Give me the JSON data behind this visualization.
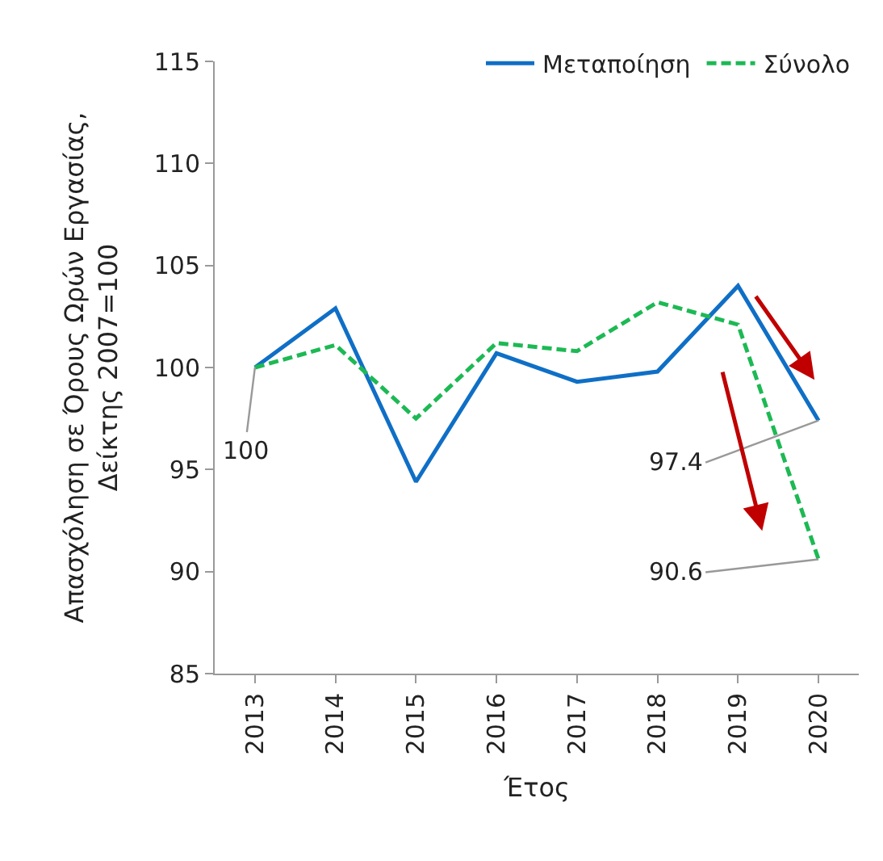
{
  "chart_data": {
    "type": "line",
    "categories": [
      "2013",
      "2014",
      "2015",
      "2016",
      "2017",
      "2018",
      "2019",
      "2020"
    ],
    "series": [
      {
        "name": "Μεταποίηση",
        "color": "#0f6fc6",
        "line_style": "solid",
        "values": [
          100,
          102.9,
          94.4,
          100.7,
          99.3,
          99.8,
          104.0,
          97.4
        ]
      },
      {
        "name": "Σύνολο",
        "color": "#1db954",
        "line_style": "dashed",
        "values": [
          100,
          101.1,
          97.5,
          101.2,
          100.8,
          103.2,
          102.1,
          90.6
        ]
      }
    ],
    "xlabel": "Έτος",
    "ylabel": "Απασχόληση σε Όρους Ωρών Εργασίας,\nΔείκτης 2007=100",
    "ylim": [
      85,
      115
    ],
    "yticks": [
      85,
      90,
      95,
      100,
      105,
      110,
      115
    ],
    "annotations": [
      {
        "text": "100",
        "x": "2013",
        "y": 100
      },
      {
        "text": "97.4",
        "x": "2020",
        "y": 97.4
      },
      {
        "text": "90.6",
        "x": "2020",
        "y": 90.6
      }
    ],
    "legend": "top right",
    "marker": "none"
  }
}
